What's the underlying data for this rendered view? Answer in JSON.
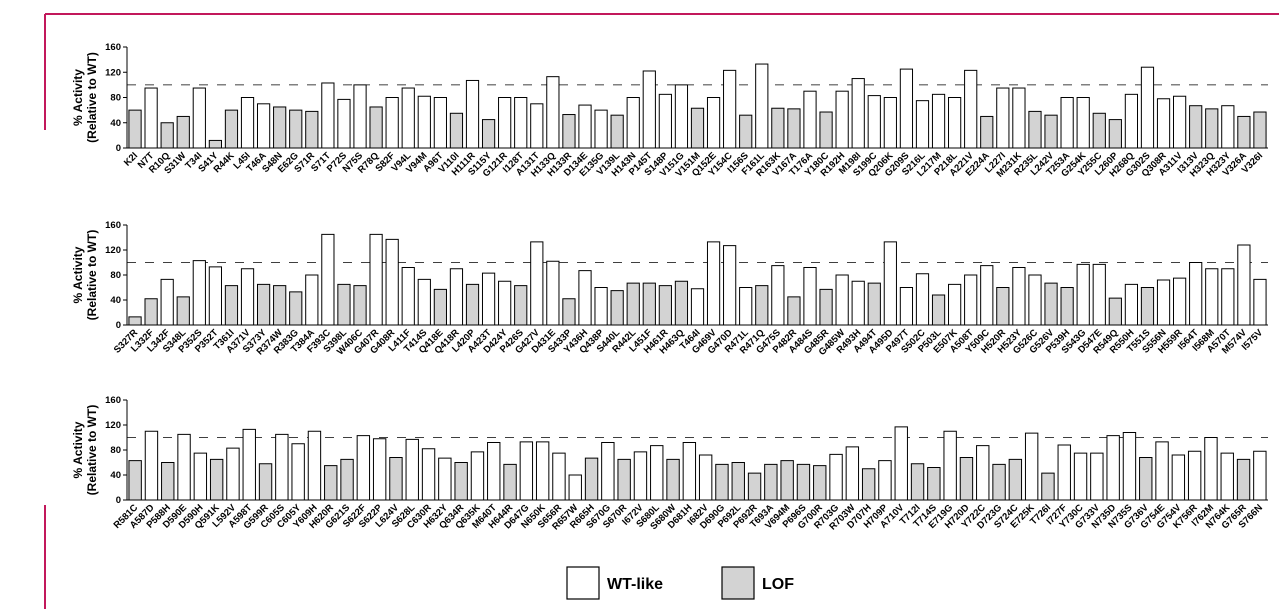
{
  "chart_data": [
    {
      "type": "bar",
      "y_label": [
        "% Activity",
        "(Relative to WT)"
      ],
      "ylim": [
        0,
        160
      ],
      "yticks": [
        0,
        40,
        80,
        120,
        160
      ],
      "reference_line": 100,
      "categories": [
        "K2I",
        "N7T",
        "R10Q",
        "S31W",
        "T34I",
        "S41Y",
        "R44K",
        "L45I",
        "T46A",
        "S48N",
        "E62G",
        "S71R",
        "S71T",
        "P72S",
        "N75S",
        "R78Q",
        "S82F",
        "V94L",
        "V94M",
        "A96T",
        "V110I",
        "H111R",
        "S115Y",
        "G121R",
        "I128T",
        "A131T",
        "H133Q",
        "H133R",
        "D134E",
        "E135G",
        "V139L",
        "H143N",
        "P145T",
        "S148P",
        "V151G",
        "V151M",
        "Q152E",
        "Y154C",
        "I156S",
        "F161L",
        "R163K",
        "V167A",
        "T176A",
        "Y180C",
        "R192H",
        "M198I",
        "S199C",
        "Q206K",
        "G209S",
        "S216L",
        "L217M",
        "P218L",
        "A221V",
        "E224A",
        "L227I",
        "M231K",
        "R235L",
        "L242V",
        "T253A",
        "G254K",
        "Y255C",
        "L260P",
        "H268Q",
        "G302S",
        "Q308R",
        "A311V",
        "I313V",
        "H323Q",
        "H323Y",
        "V326A",
        "V326I"
      ],
      "values": [
        60,
        95,
        40,
        50,
        95,
        12,
        60,
        80,
        70,
        65,
        60,
        58,
        103,
        77,
        100,
        65,
        80,
        95,
        82,
        80,
        55,
        107,
        45,
        80,
        80,
        70,
        113,
        53,
        68,
        60,
        52,
        80,
        122,
        85,
        100,
        63,
        80,
        123,
        52,
        133,
        63,
        62,
        90,
        57,
        90,
        110,
        83,
        80,
        125,
        75,
        85,
        80,
        123,
        50,
        95,
        95,
        58,
        52,
        80,
        80,
        55,
        45,
        85,
        128,
        78,
        82,
        67,
        62,
        67,
        50,
        57
      ],
      "colors": [
        "#d3d3d3",
        "#fff",
        "#d3d3d3",
        "#d3d3d3",
        "#fff",
        "#d3d3d3",
        "#d3d3d3",
        "#fff",
        "#fff",
        "#d3d3d3",
        "#d3d3d3",
        "#d3d3d3",
        "#fff",
        "#fff",
        "#fff",
        "#d3d3d3",
        "#fff",
        "#fff",
        "#fff",
        "#fff",
        "#d3d3d3",
        "#fff",
        "#d3d3d3",
        "#fff",
        "#fff",
        "#fff",
        "#fff",
        "#d3d3d3",
        "#fff",
        "#fff",
        "#d3d3d3",
        "#fff",
        "#fff",
        "#fff",
        "#fff",
        "#d3d3d3",
        "#fff",
        "#fff",
        "#d3d3d3",
        "#fff",
        "#d3d3d3",
        "#d3d3d3",
        "#fff",
        "#d3d3d3",
        "#fff",
        "#fff",
        "#fff",
        "#fff",
        "#fff",
        "#fff",
        "#fff",
        "#fff",
        "#fff",
        "#d3d3d3",
        "#fff",
        "#fff",
        "#d3d3d3",
        "#d3d3d3",
        "#fff",
        "#fff",
        "#d3d3d3",
        "#d3d3d3",
        "#fff",
        "#fff",
        "#fff",
        "#fff",
        "#d3d3d3",
        "#d3d3d3",
        "#fff",
        "#d3d3d3",
        "#d3d3d3"
      ]
    },
    {
      "type": "bar",
      "y_label": [
        "% Activity",
        "(Relative to WT)"
      ],
      "ylim": [
        0,
        160
      ],
      "yticks": [
        0,
        40,
        80,
        120,
        160
      ],
      "reference_line": 100,
      "categories": [
        "S327R",
        "L332F",
        "L342F",
        "S348L",
        "P352S",
        "P352T",
        "T361I",
        "A371V",
        "S373Y",
        "R374W",
        "R383G",
        "T384A",
        "F393C",
        "S398L",
        "W406C",
        "G407R",
        "G408R",
        "L411F",
        "T414S",
        "Q418E",
        "Q418R",
        "L420P",
        "A423T",
        "D424Y",
        "P426S",
        "G427V",
        "D431E",
        "S433P",
        "Y436H",
        "Q438P",
        "S440L",
        "R442L",
        "L451F",
        "H461R",
        "H463Q",
        "T464I",
        "G469V",
        "G470D",
        "R471L",
        "R471Q",
        "G475S",
        "P482R",
        "A484S",
        "G485R",
        "G485W",
        "R493H",
        "A494T",
        "A495D",
        "P497T",
        "S502C",
        "P503L",
        "E507K",
        "A508T",
        "Y509C",
        "H520R",
        "H523Y",
        "G526C",
        "G526V",
        "P539H",
        "S543G",
        "D547E",
        "R549Q",
        "R550H",
        "T551S",
        "S556N",
        "H559R",
        "I564T",
        "I568M",
        "A570T",
        "M574V",
        "I575V"
      ],
      "values": [
        13,
        42,
        73,
        45,
        103,
        93,
        63,
        90,
        65,
        63,
        53,
        80,
        145,
        65,
        63,
        145,
        137,
        92,
        73,
        57,
        90,
        65,
        83,
        70,
        63,
        133,
        102,
        42,
        87,
        60,
        55,
        67,
        67,
        63,
        70,
        58,
        133,
        127,
        60,
        63,
        95,
        45,
        92,
        57,
        80,
        70,
        67,
        133,
        60,
        82,
        48,
        65,
        80,
        95,
        60,
        92,
        80,
        67,
        60,
        97,
        97,
        43,
        65,
        60,
        72,
        75,
        100,
        90,
        90,
        128,
        73
      ],
      "colors": [
        "#d3d3d3",
        "#d3d3d3",
        "#fff",
        "#d3d3d3",
        "#fff",
        "#fff",
        "#d3d3d3",
        "#fff",
        "#d3d3d3",
        "#d3d3d3",
        "#d3d3d3",
        "#fff",
        "#fff",
        "#d3d3d3",
        "#d3d3d3",
        "#fff",
        "#fff",
        "#fff",
        "#fff",
        "#d3d3d3",
        "#fff",
        "#d3d3d3",
        "#fff",
        "#fff",
        "#d3d3d3",
        "#fff",
        "#fff",
        "#d3d3d3",
        "#fff",
        "#fff",
        "#d3d3d3",
        "#d3d3d3",
        "#d3d3d3",
        "#d3d3d3",
        "#d3d3d3",
        "#fff",
        "#fff",
        "#fff",
        "#fff",
        "#d3d3d3",
        "#fff",
        "#d3d3d3",
        "#fff",
        "#d3d3d3",
        "#fff",
        "#fff",
        "#d3d3d3",
        "#fff",
        "#fff",
        "#fff",
        "#d3d3d3",
        "#fff",
        "#fff",
        "#fff",
        "#d3d3d3",
        "#fff",
        "#fff",
        "#d3d3d3",
        "#d3d3d3",
        "#fff",
        "#fff",
        "#d3d3d3",
        "#fff",
        "#d3d3d3",
        "#fff",
        "#fff",
        "#fff",
        "#fff",
        "#fff",
        "#fff",
        "#fff"
      ]
    },
    {
      "type": "bar",
      "y_label": [
        "% Activity",
        "(Relative to WT)"
      ],
      "ylim": [
        0,
        160
      ],
      "yticks": [
        0,
        40,
        80,
        120,
        160
      ],
      "reference_line": 100,
      "categories": [
        "R581C",
        "A587D",
        "P588H",
        "D590E",
        "D590H",
        "Q591K",
        "L592V",
        "A598T",
        "G599R",
        "C605S",
        "C605Y",
        "Y609H",
        "H620R",
        "G621S",
        "S622F",
        "S622P",
        "L624V",
        "S628L",
        "C630R",
        "H632Y",
        "Q634R",
        "Q635K",
        "M640T",
        "H644R",
        "D647G",
        "N650K",
        "S656R",
        "R657W",
        "R665H",
        "S670G",
        "S670R",
        "I672V",
        "S680L",
        "S680W",
        "D681H",
        "I682V",
        "D690G",
        "P692L",
        "P692R",
        "T693A",
        "V694M",
        "P696S",
        "G700R",
        "R703G",
        "R703W",
        "D707H",
        "H709P",
        "A710V",
        "T712I",
        "T714S",
        "E719G",
        "H720D",
        "Y722C",
        "D723G",
        "S724C",
        "E725K",
        "T726I",
        "I727F",
        "Y730C",
        "G733V",
        "N735D",
        "N735S",
        "G736V",
        "G754E",
        "G754V",
        "K756R",
        "I762M",
        "N764K",
        "G765R",
        "S766N"
      ],
      "values": [
        63,
        110,
        60,
        105,
        75,
        65,
        83,
        113,
        58,
        105,
        90,
        110,
        55,
        65,
        103,
        98,
        68,
        97,
        82,
        67,
        60,
        77,
        92,
        57,
        93,
        93,
        75,
        40,
        67,
        92,
        65,
        77,
        87,
        65,
        92,
        72,
        57,
        60,
        43,
        57,
        63,
        57,
        55,
        73,
        85,
        50,
        63,
        117,
        58,
        52,
        110,
        68,
        87,
        57,
        65,
        107,
        43,
        88,
        75,
        75,
        103,
        108,
        68,
        93,
        72,
        78,
        100,
        75,
        65,
        78
      ],
      "colors": [
        "#d3d3d3",
        "#fff",
        "#d3d3d3",
        "#fff",
        "#fff",
        "#d3d3d3",
        "#fff",
        "#fff",
        "#d3d3d3",
        "#fff",
        "#fff",
        "#fff",
        "#d3d3d3",
        "#d3d3d3",
        "#fff",
        "#fff",
        "#d3d3d3",
        "#fff",
        "#fff",
        "#fff",
        "#d3d3d3",
        "#fff",
        "#fff",
        "#d3d3d3",
        "#fff",
        "#fff",
        "#fff",
        "#fff",
        "#d3d3d3",
        "#fff",
        "#d3d3d3",
        "#fff",
        "#fff",
        "#d3d3d3",
        "#fff",
        "#fff",
        "#d3d3d3",
        "#d3d3d3",
        "#d3d3d3",
        "#d3d3d3",
        "#d3d3d3",
        "#d3d3d3",
        "#d3d3d3",
        "#fff",
        "#fff",
        "#d3d3d3",
        "#fff",
        "#fff",
        "#d3d3d3",
        "#d3d3d3",
        "#fff",
        "#d3d3d3",
        "#fff",
        "#d3d3d3",
        "#d3d3d3",
        "#fff",
        "#d3d3d3",
        "#fff",
        "#fff",
        "#fff",
        "#fff",
        "#fff",
        "#d3d3d3",
        "#fff",
        "#fff",
        "#fff",
        "#fff",
        "#fff",
        "#d3d3d3",
        "#fff"
      ]
    }
  ],
  "legend": [
    {
      "name": "WT-like",
      "color": "#fff"
    },
    {
      "name": "LOF",
      "color": "#d3d3d3"
    }
  ]
}
